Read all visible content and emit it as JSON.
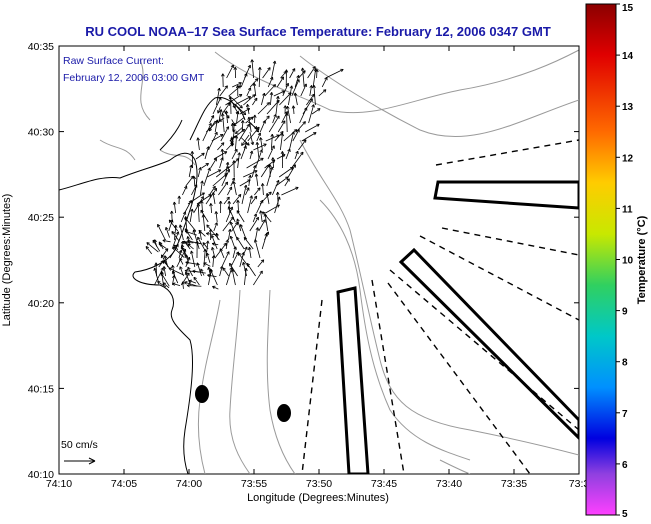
{
  "title": "RU COOL  NOAA–17  Sea Surface Temperature:  February 12, 2006 0347 GMT",
  "inset": {
    "line1": "Raw Surface Current:",
    "line2": "February 12, 2006 03:00 GMT"
  },
  "scale_label": "50 cm/s",
  "axes": {
    "xlabel": "Longitude (Degrees:Minutes)",
    "ylabel": "Latitude (Degrees:Minutes)",
    "x_ticks": [
      "74:10",
      "74:05",
      "74:00",
      "73:55",
      "73:50",
      "73:45",
      "73:40",
      "73:35",
      "73:3"
    ],
    "y_ticks": [
      "40:35",
      "40:30",
      "40:25",
      "40:20",
      "40:15",
      "40:10"
    ]
  },
  "colorbar": {
    "label": "Temperature (°C)",
    "ticks": [
      "15",
      "14",
      "13",
      "12",
      "11",
      "10",
      "9",
      "8",
      "7",
      "6",
      "5"
    ],
    "min": 5,
    "max": 15
  },
  "colors": {
    "title": "#1a1aa8",
    "inset": "#1a1aa8",
    "contour": "#9a9a9a",
    "coast": "#000000"
  }
}
